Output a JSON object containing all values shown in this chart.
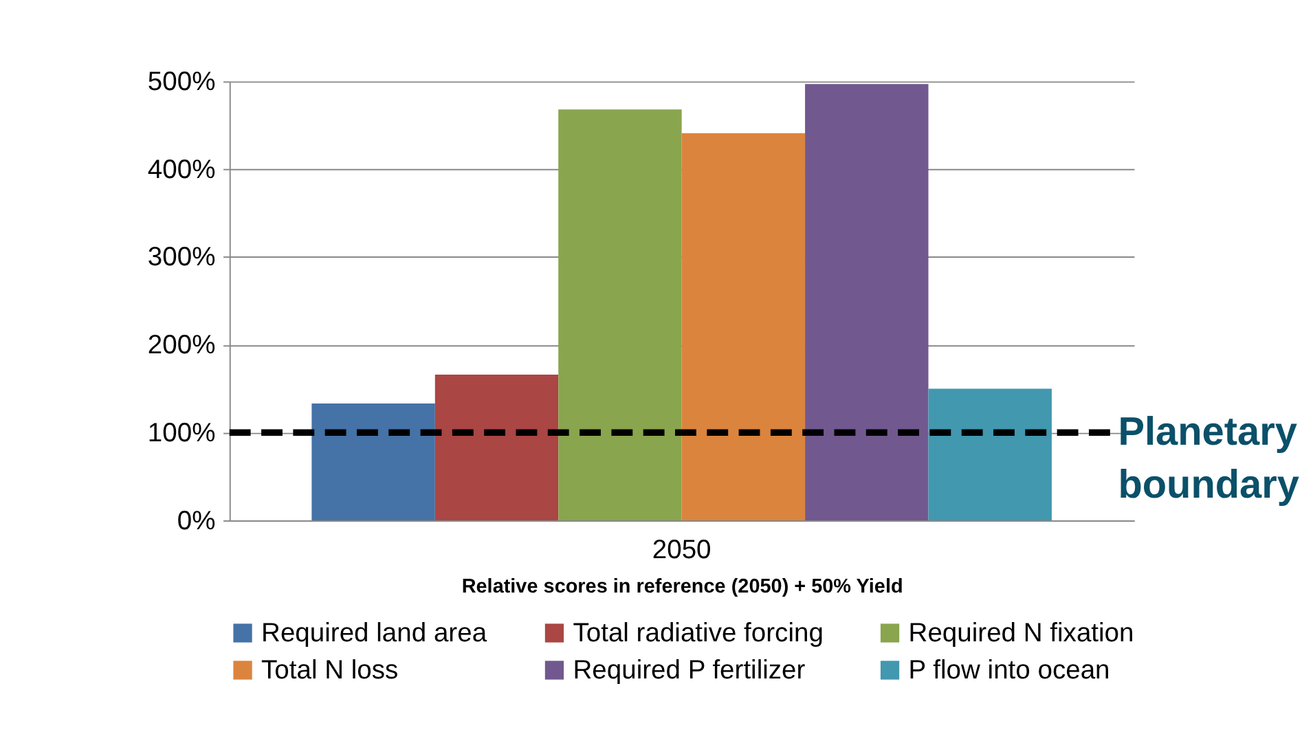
{
  "chart_data": {
    "type": "bar",
    "categories": [
      "2050"
    ],
    "xlabel": "Relative scores in reference (2050) + 50% Yield",
    "series": [
      {
        "name": "Required land area",
        "color": "#4572a7",
        "values": [
          133
        ]
      },
      {
        "name": "Total radiative forcing",
        "color": "#aa4643",
        "values": [
          166
        ]
      },
      {
        "name": "Required N fixation",
        "color": "#89a54e",
        "values": [
          468
        ]
      },
      {
        "name": "Total N loss",
        "color": "#db843d",
        "values": [
          441
        ]
      },
      {
        "name": "Required P fertilizer",
        "color": "#71588f",
        "values": [
          497
        ]
      },
      {
        "name": "P flow into ocean",
        "color": "#4198af",
        "values": [
          150
        ]
      }
    ],
    "ylim": [
      0,
      500
    ],
    "yticks": [
      {
        "value": 0,
        "label": "0%"
      },
      {
        "value": 100,
        "label": "100%"
      },
      {
        "value": 200,
        "label": "200%"
      },
      {
        "value": 300,
        "label": "300%"
      },
      {
        "value": 400,
        "label": "400%"
      },
      {
        "value": 500,
        "label": "500%"
      }
    ],
    "grid": "y",
    "legend": "bottom",
    "ref_lines": [
      {
        "axis": "y",
        "value": 100,
        "label": "Planetary boundary",
        "color": "#000000",
        "line_style": "dashed"
      }
    ]
  }
}
